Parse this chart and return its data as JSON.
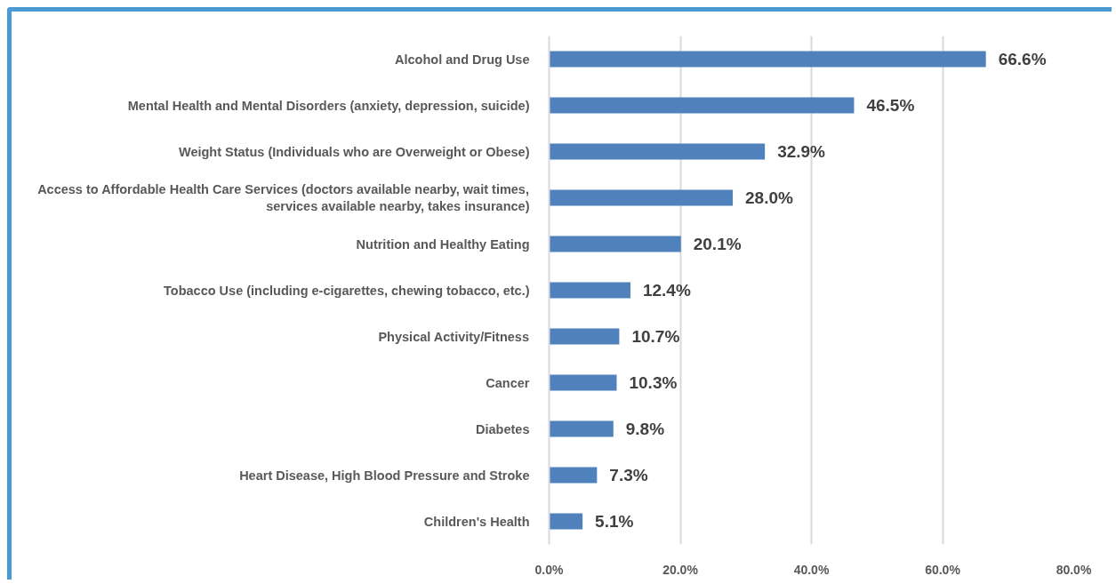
{
  "chart_data": {
    "type": "bar",
    "orientation": "horizontal",
    "categories": [
      "Alcohol and Drug Use",
      "Mental Health and Mental Disorders (anxiety, depression, suicide)",
      "Weight Status (Individuals who are Overweight or Obese)",
      "Access to Affordable Health Care Services (doctors available nearby, wait times, services available nearby, takes insurance)",
      "Nutrition and Healthy Eating",
      "Tobacco Use (including e-cigarettes, chewing tobacco, etc.)",
      "Physical Activity/Fitness",
      "Cancer",
      "Diabetes",
      "Heart Disease, High Blood Pressure and Stroke",
      "Children's Health"
    ],
    "values": [
      66.6,
      46.5,
      32.9,
      28.0,
      20.1,
      12.4,
      10.7,
      10.3,
      9.8,
      7.3,
      5.1
    ],
    "value_labels": [
      "66.6%",
      "46.5%",
      "32.9%",
      "28.0%",
      "20.1%",
      "12.4%",
      "10.7%",
      "10.3%",
      "9.8%",
      "7.3%",
      "5.1%"
    ],
    "color": "#4f81bd",
    "xlim": [
      0,
      80
    ],
    "xticks": [
      {
        "value": 0,
        "label": "0.0%"
      },
      {
        "value": 20,
        "label": "20.0%"
      },
      {
        "value": 40,
        "label": "40.0%"
      },
      {
        "value": 60,
        "label": "60.0%"
      },
      {
        "value": 80,
        "label": "80.0%"
      }
    ],
    "grid": "x"
  }
}
